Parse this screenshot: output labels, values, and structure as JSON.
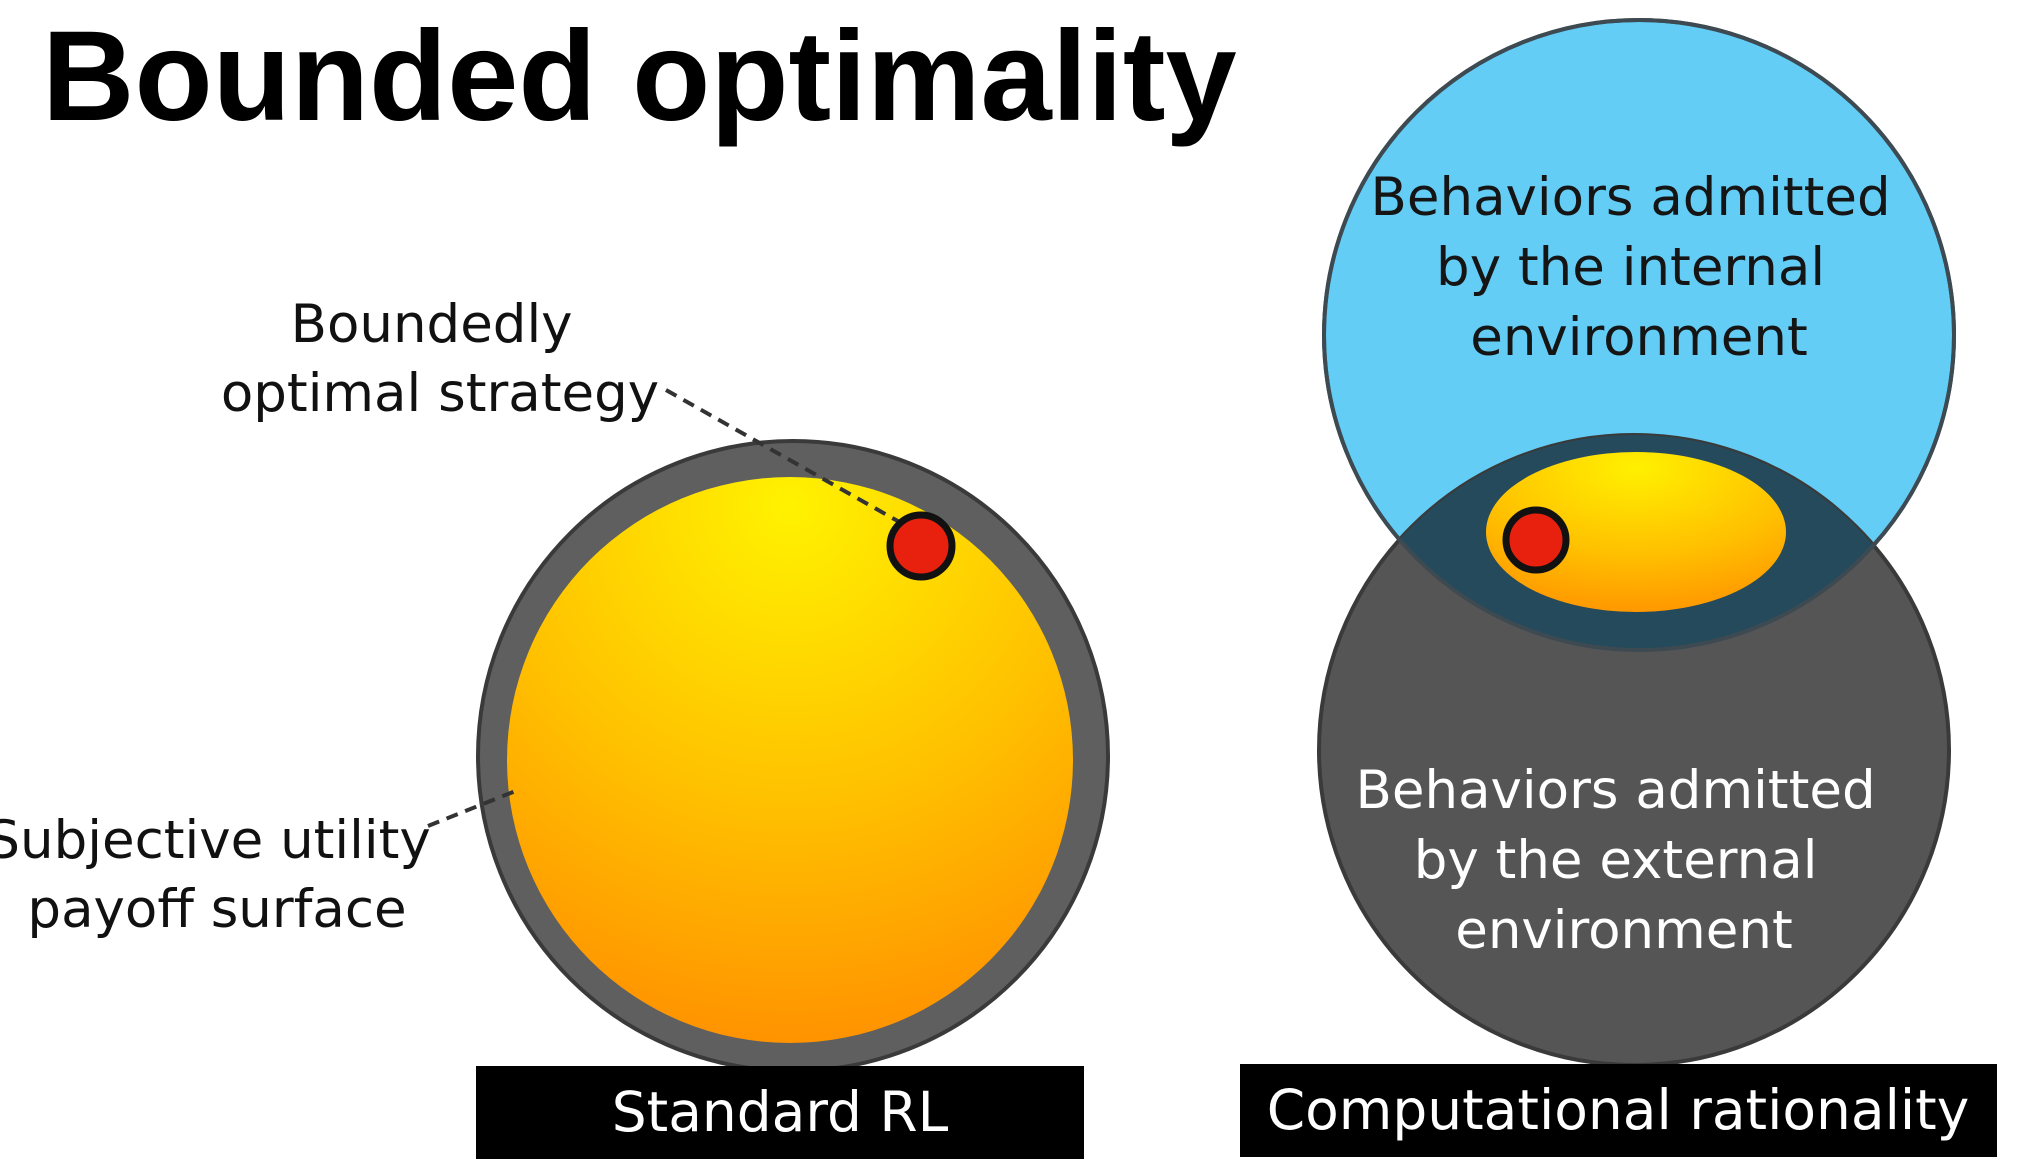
{
  "title": "Bounded optimality",
  "left_panel": {
    "annotation_top": [
      "Boundedly",
      "optimal strategy"
    ],
    "annotation_left": [
      "Subjective utility",
      "payoff surface"
    ],
    "caption": "Standard RL"
  },
  "right_panel": {
    "internal_label": [
      "Behaviors admitted",
      "by the internal",
      "environment"
    ],
    "external_label": [
      "Behaviors admitted",
      "by the external",
      "environment"
    ],
    "caption": "Computational rationality"
  },
  "colors": {
    "outer_ring": "#5f5f5f",
    "internal_env": "#63cdf5",
    "overlap": "#244a5c",
    "external_env": "#555555",
    "optimum_dot": "#e8210f",
    "caption_bar": "#000000"
  }
}
